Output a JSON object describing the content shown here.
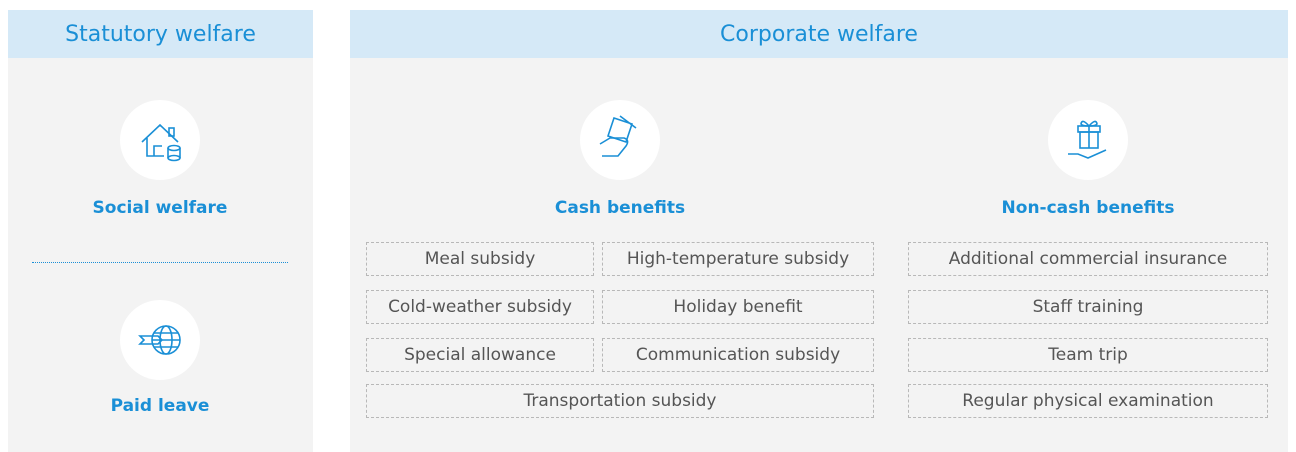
{
  "statutory": {
    "title": "Statutory welfare",
    "items": [
      "Social welfare",
      "Paid leave"
    ]
  },
  "corporate": {
    "title": "Corporate welfare",
    "groups": [
      {
        "title": "Cash benefits",
        "items": [
          "Meal subsidy",
          "High-temperature subsidy",
          "Cold-weather subsidy",
          "Holiday benefit",
          "Special allowance",
          "Communication subsidy",
          "Transportation subsidy"
        ]
      },
      {
        "title": "Non-cash benefits",
        "items": [
          "Additional commercial insurance",
          "Staff training",
          "Team trip",
          "Regular physical examination"
        ]
      }
    ]
  }
}
